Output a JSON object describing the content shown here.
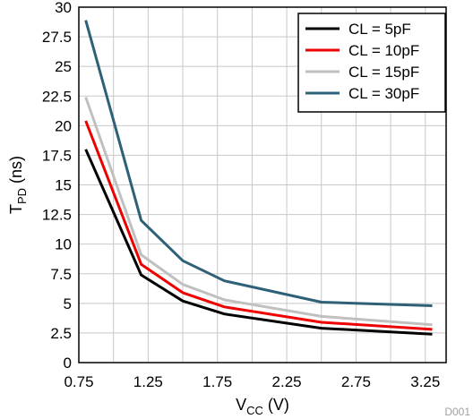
{
  "chart_data": {
    "type": "line",
    "xlabel": "VCC (V)",
    "xlabel_main": "V",
    "xlabel_sub": "CC",
    "xlabel_unit": " (V)",
    "ylabel": "TPD (ns)",
    "ylabel_main": "T",
    "ylabel_sub": "PD",
    "ylabel_unit": " (ns)",
    "xlim": [
      0.75,
      3.4
    ],
    "ylim": [
      0,
      30
    ],
    "xticks": [
      "0.75",
      "1.25",
      "1.75",
      "2.25",
      "2.75",
      "3.25"
    ],
    "yticks": [
      "0",
      "2.5",
      "5",
      "7.5",
      "10",
      "12.5",
      "15",
      "17.5",
      "20",
      "22.5",
      "25",
      "27.5",
      "30"
    ],
    "grid": true,
    "legend_position": "top-right",
    "footnote": "D001",
    "series": [
      {
        "name": "CL = 5pF",
        "color": "#000000",
        "x": [
          0.8,
          1.2,
          1.5,
          1.8,
          2.5,
          3.3
        ],
        "y": [
          18.0,
          7.4,
          5.2,
          4.1,
          2.9,
          2.4
        ]
      },
      {
        "name": "CL = 10pF",
        "color": "#ee0000",
        "x": [
          0.8,
          1.2,
          1.5,
          1.8,
          2.5,
          3.3
        ],
        "y": [
          20.4,
          8.3,
          5.9,
          4.7,
          3.4,
          2.8
        ]
      },
      {
        "name": "CL = 15pF",
        "color": "#c0c0c0",
        "x": [
          0.8,
          1.2,
          1.5,
          1.8,
          2.5,
          3.3
        ],
        "y": [
          22.4,
          9.1,
          6.6,
          5.3,
          3.9,
          3.2
        ]
      },
      {
        "name": "CL = 30pF",
        "color": "#2e6077",
        "x": [
          0.8,
          1.2,
          1.5,
          1.8,
          2.5,
          3.3
        ],
        "y": [
          28.9,
          12.0,
          8.6,
          6.9,
          5.1,
          4.8
        ]
      }
    ]
  }
}
